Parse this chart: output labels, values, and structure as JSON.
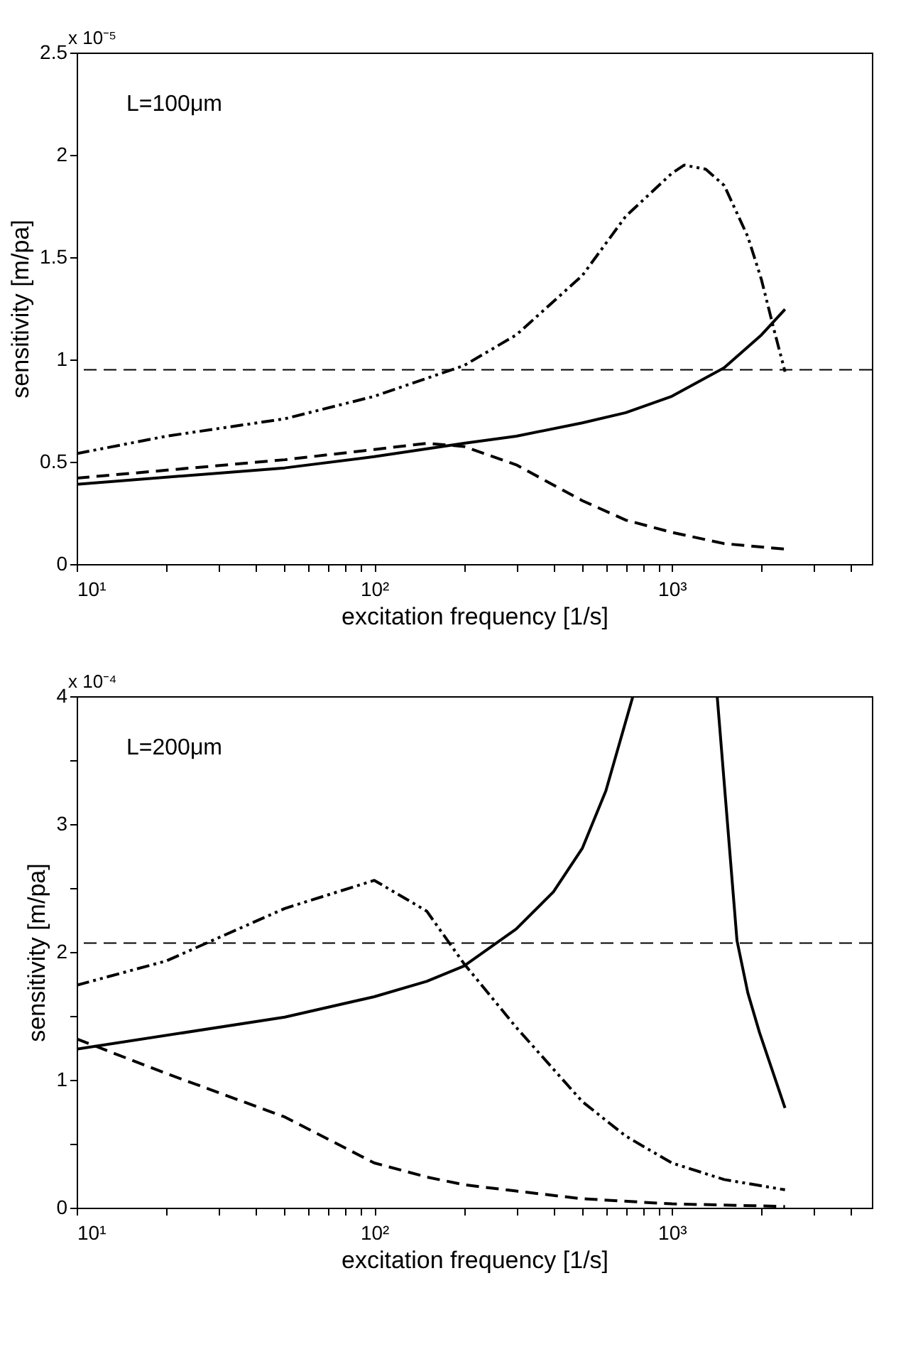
{
  "chart_data": [
    {
      "type": "line",
      "xlabel": "excitation frequency [1/s]",
      "ylabel": "sensitivity [m/pa]",
      "log": "x",
      "grid": false,
      "annotations": [
        "x 10⁻⁵",
        "L=100μm"
      ],
      "xlim": [
        10,
        4700
      ],
      "ylim": [
        0,
        2.5
      ],
      "xticks": [
        {
          "value": 10,
          "label": "10¹"
        },
        {
          "value": 20,
          "label": null
        },
        {
          "value": 30,
          "label": null
        },
        {
          "value": 40,
          "label": null
        },
        {
          "value": 50,
          "label": null
        },
        {
          "value": 60,
          "label": null
        },
        {
          "value": 70,
          "label": null
        },
        {
          "value": 80,
          "label": null
        },
        {
          "value": 90,
          "label": null
        },
        {
          "value": 100,
          "label": "10²"
        },
        {
          "value": 200,
          "label": null
        },
        {
          "value": 300,
          "label": null
        },
        {
          "value": 400,
          "label": null
        },
        {
          "value": 500,
          "label": null
        },
        {
          "value": 600,
          "label": null
        },
        {
          "value": 700,
          "label": null
        },
        {
          "value": 800,
          "label": null
        },
        {
          "value": 900,
          "label": null
        },
        {
          "value": 1000,
          "label": "10³"
        },
        {
          "value": 2000,
          "label": null
        },
        {
          "value": 3000,
          "label": null
        },
        {
          "value": 4000,
          "label": null
        }
      ],
      "yticks": [
        0,
        0.5,
        1,
        1.5,
        2,
        2.5
      ],
      "ref_lines": [
        {
          "axis": "y",
          "value": 0.95,
          "color": "#000000",
          "line_style": "dashed"
        }
      ],
      "series": [
        {
          "color": "#000000",
          "line_style": "dashdotdot",
          "x": [
            10,
            20,
            50,
            100,
            200,
            300,
            500,
            700,
            1000,
            1100,
            1300,
            1500,
            1800,
            2000,
            2200,
            2400
          ],
          "values": [
            0.54,
            0.625,
            0.71,
            0.82,
            0.97,
            1.12,
            1.41,
            1.7,
            1.91,
            1.95,
            1.93,
            1.85,
            1.6,
            1.39,
            1.15,
            0.94
          ]
        },
        {
          "color": "#000000",
          "line_style": "solid",
          "x": [
            10,
            50,
            100,
            200,
            300,
            500,
            700,
            1000,
            1500,
            2000,
            2400
          ],
          "values": [
            0.39,
            0.47,
            0.525,
            0.59,
            0.625,
            0.69,
            0.74,
            0.82,
            0.96,
            1.12,
            1.245
          ]
        },
        {
          "color": "#000000",
          "line_style": "dashed",
          "x": [
            10,
            50,
            100,
            150,
            200,
            300,
            500,
            700,
            1000,
            1500,
            2400
          ],
          "values": [
            0.42,
            0.51,
            0.56,
            0.59,
            0.575,
            0.485,
            0.31,
            0.215,
            0.155,
            0.1,
            0.073
          ]
        }
      ]
    },
    {
      "type": "line",
      "xlabel": "excitation frequency [1/s]",
      "ylabel": "sensitivity [m/pa]",
      "log": "x",
      "grid": false,
      "annotations": [
        "x 10⁻⁴",
        "L=200μm"
      ],
      "xlim": [
        10,
        4700
      ],
      "ylim": [
        0,
        4
      ],
      "xticks": [
        {
          "value": 10,
          "label": "10¹"
        },
        {
          "value": 20,
          "label": null
        },
        {
          "value": 30,
          "label": null
        },
        {
          "value": 40,
          "label": null
        },
        {
          "value": 50,
          "label": null
        },
        {
          "value": 60,
          "label": null
        },
        {
          "value": 70,
          "label": null
        },
        {
          "value": 80,
          "label": null
        },
        {
          "value": 90,
          "label": null
        },
        {
          "value": 100,
          "label": "10²"
        },
        {
          "value": 200,
          "label": null
        },
        {
          "value": 300,
          "label": null
        },
        {
          "value": 400,
          "label": null
        },
        {
          "value": 500,
          "label": null
        },
        {
          "value": 600,
          "label": null
        },
        {
          "value": 700,
          "label": null
        },
        {
          "value": 800,
          "label": null
        },
        {
          "value": 900,
          "label": null
        },
        {
          "value": 1000,
          "label": "10³"
        },
        {
          "value": 2000,
          "label": null
        },
        {
          "value": 3000,
          "label": null
        },
        {
          "value": 4000,
          "label": null
        }
      ],
      "yticks": [
        0,
        {
          "value": 0.5,
          "label": null
        },
        1,
        {
          "value": 1.5,
          "label": null
        },
        2,
        {
          "value": 2.5,
          "label": null
        },
        3,
        {
          "value": 3.5,
          "label": null
        },
        4
      ],
      "ref_lines": [
        {
          "axis": "y",
          "value": 2.07,
          "color": "#000000",
          "line_style": "dashed"
        }
      ],
      "series": [
        {
          "color": "#000000",
          "line_style": "solid",
          "x": [
            10,
            50,
            100,
            150,
            200,
            300,
            400,
            500,
            600,
            740,
            1000,
            1420,
            1655,
            1800,
            1970,
            2400
          ],
          "values": [
            1.24,
            1.49,
            1.65,
            1.77,
            1.89,
            2.18,
            2.47,
            2.81,
            3.26,
            4,
            null,
            4,
            2.09,
            1.68,
            1.37,
            0.78
          ]
        },
        {
          "color": "#000000",
          "line_style": "dashdotdot",
          "x": [
            10,
            20,
            50,
            100,
            150,
            200,
            300,
            500,
            700,
            1000,
            1500,
            2400
          ],
          "values": [
            1.74,
            1.93,
            2.34,
            2.56,
            2.32,
            1.91,
            1.41,
            0.83,
            0.56,
            0.35,
            0.22,
            0.14
          ]
        },
        {
          "color": "#000000",
          "line_style": "dashed",
          "x": [
            10,
            20,
            50,
            100,
            150,
            200,
            300,
            500,
            1000,
            2400
          ],
          "values": [
            1.32,
            1.05,
            0.71,
            0.35,
            0.24,
            0.18,
            0.13,
            0.07,
            0.03,
            0.01
          ]
        }
      ]
    }
  ]
}
